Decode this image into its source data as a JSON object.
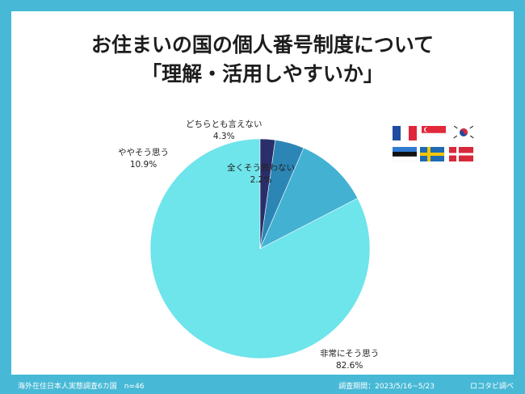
{
  "header": {
    "title_line1": "お住まいの国の個人番号制度について",
    "title_line2": "「理解・活用しやすいか」"
  },
  "footer": {
    "survey": "海外在住日本人実態調査6カ国　n=46",
    "period": "調査期間：2023/5/16~5/23",
    "brand": "ロコタビ調べ"
  },
  "flags": [
    "france-flag",
    "singapore-flag",
    "south-korea-flag",
    "estonia-flag",
    "sweden-flag",
    "denmark-flag"
  ],
  "chart_data": {
    "type": "pie",
    "slices": [
      {
        "name": "非常にそう思う",
        "value": 82.6,
        "label": "82.6%",
        "color": "#6ee4eb"
      },
      {
        "name": "ややそう思う",
        "value": 10.9,
        "label": "10.9%",
        "color": "#43b2d2"
      },
      {
        "name": "どちらとも言えない",
        "value": 4.3,
        "label": "4.3%",
        "color": "#2c86b5"
      },
      {
        "name": "全くそう思わない",
        "value": 2.2,
        "label": "2.2%",
        "color": "#2a2f6b"
      }
    ],
    "start": "top",
    "direction": "counterclockwise"
  }
}
